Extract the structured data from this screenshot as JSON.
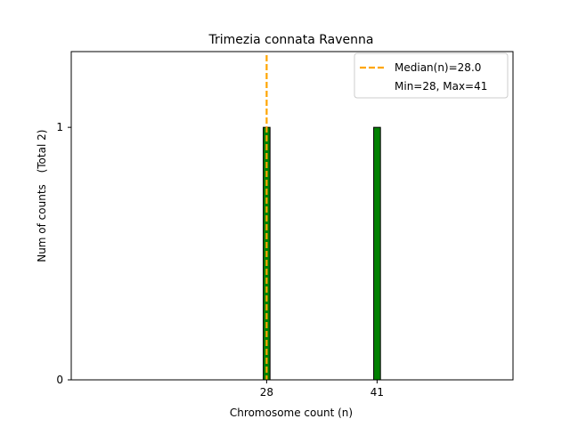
{
  "chart_data": {
    "type": "bar",
    "title": "Trimezia connata Ravenna",
    "xlabel": "Chromosome count (n)",
    "ylabel": "Num of counts",
    "ylabel_total": "(Total 2)",
    "x": [
      28,
      41
    ],
    "values": [
      1,
      1
    ],
    "xticks": [
      28,
      41
    ],
    "xtick_labels": [
      "28",
      "41"
    ],
    "yticks": [
      0,
      1
    ],
    "ytick_labels": [
      "0",
      "1"
    ],
    "xlim": [
      5,
      57
    ],
    "ylim": [
      0,
      1.3
    ],
    "bar_width": 0.8,
    "bar_color": "#008000",
    "bar_edge_color": "#000000",
    "median": 28.0,
    "median_color": "#FFA500",
    "legend": {
      "placement": "top-right",
      "entries": [
        "Median(n)=28.0",
        "Min=28, Max=41"
      ]
    },
    "grid": false
  }
}
